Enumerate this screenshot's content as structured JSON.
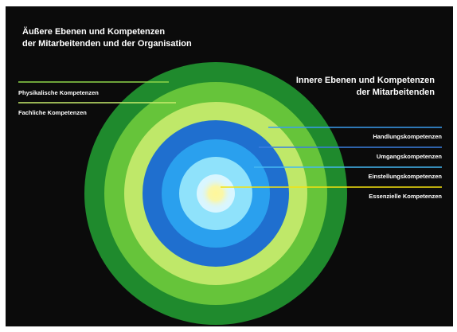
{
  "titles": {
    "outer": "Äußere Ebenen und Kompetenzen\nder Mitarbeitenden und der Organisation",
    "inner": "Innere Ebenen und Kompetenzen\nder Mitarbeitenden"
  },
  "rings": [
    {
      "color": "#1f8a2d"
    },
    {
      "color": "#66c43a"
    },
    {
      "color": "#bfe869"
    },
    {
      "color": "#1f6fcf"
    },
    {
      "color": "#2aa0ee"
    },
    {
      "color": "#8fe2fb"
    },
    {
      "color": "#d9f6ff"
    }
  ],
  "core_color": "#fff79a",
  "labels_left": [
    {
      "text": "Physikalische Kompetenzen",
      "line_color": "#8ed64a"
    },
    {
      "text": "Fachliche Kompetenzen",
      "line_color": "#c8ec6c"
    }
  ],
  "labels_right": [
    {
      "text": "Handlungskompetenzen",
      "line_color": "#3a9df0"
    },
    {
      "text": "Umgangskompetenzen",
      "line_color": "#3a7fe0"
    },
    {
      "text": "Einstellungskompetenzen",
      "line_color": "#45b8f2"
    },
    {
      "text": "Essenzielle Kompetenzen",
      "line_color": "#f4e20f"
    }
  ]
}
